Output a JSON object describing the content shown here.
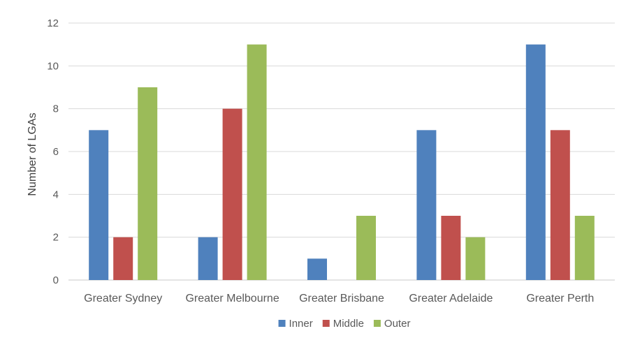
{
  "chart_data": {
    "type": "bar",
    "title": "",
    "xlabel": "",
    "ylabel": "Number of LGAs",
    "ylim": [
      0,
      12
    ],
    "yticks": [
      0,
      2,
      4,
      6,
      8,
      10,
      12
    ],
    "grid": true,
    "legend_position": "bottom",
    "categories": [
      "Greater Sydney",
      "Greater Melbourne",
      "Greater Brisbane",
      "Greater Adelaide",
      "Greater Perth"
    ],
    "series": [
      {
        "name": "Inner",
        "color": "#4f81bd",
        "values": [
          7,
          2,
          1,
          7,
          11
        ]
      },
      {
        "name": "Middle",
        "color": "#c0504d",
        "values": [
          2,
          8,
          0,
          3,
          7
        ]
      },
      {
        "name": "Outer",
        "color": "#9bbb59",
        "values": [
          9,
          11,
          3,
          2,
          3
        ]
      }
    ]
  }
}
